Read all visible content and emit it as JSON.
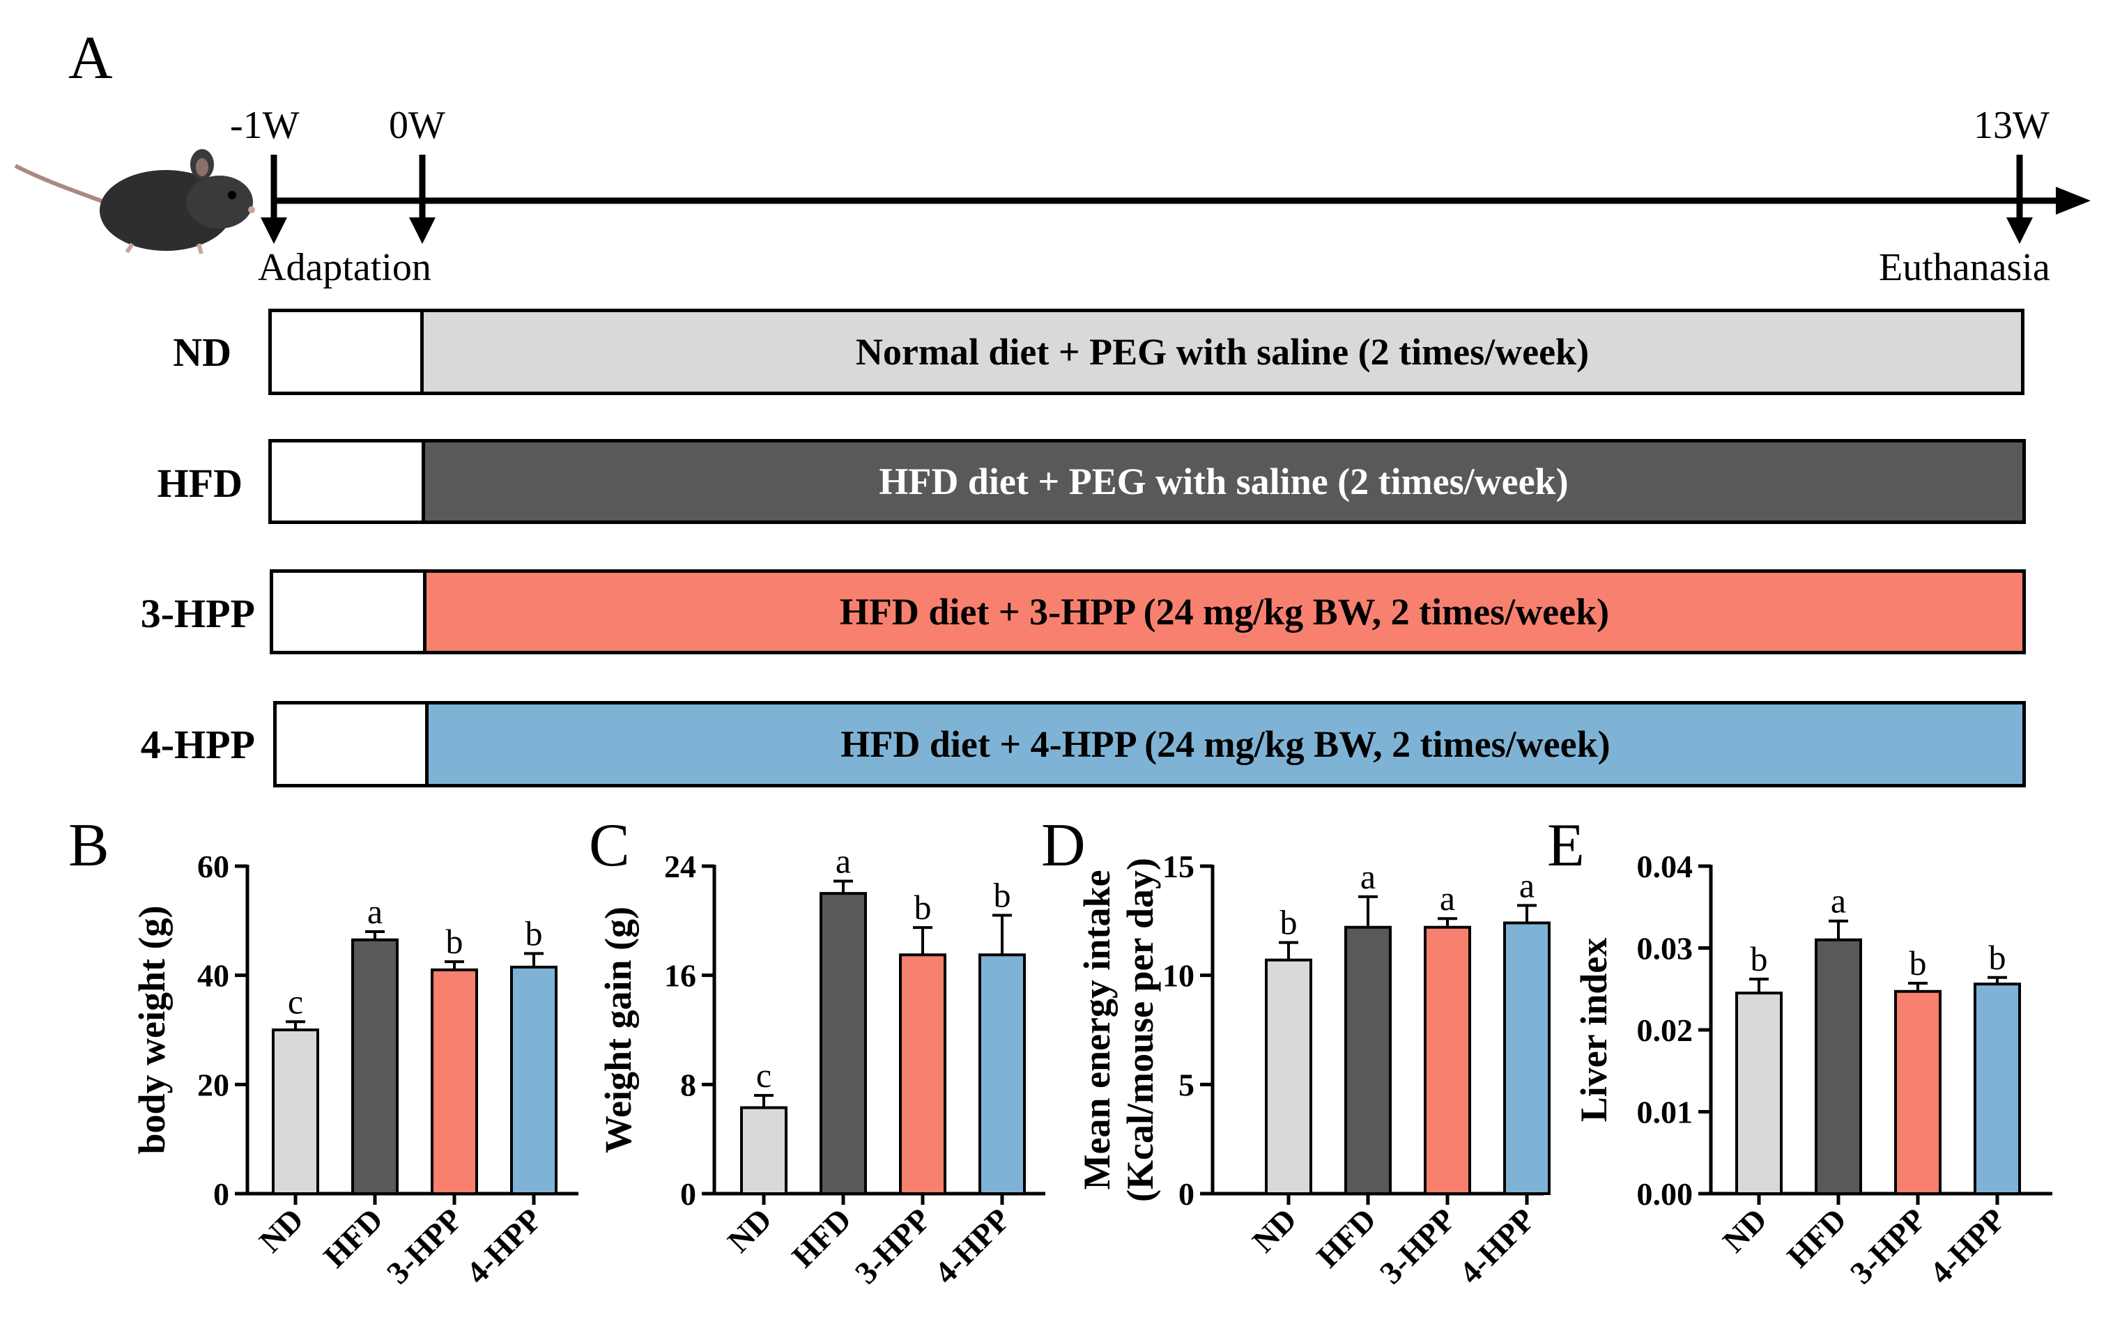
{
  "panels": {
    "A": "A",
    "B": "B",
    "C": "C",
    "D": "D",
    "E": "E"
  },
  "timeline": {
    "ticks": [
      "-1W",
      "0W",
      "13W"
    ],
    "events": {
      "adaptation": "Adaptation",
      "euthanasia": "Euthanasia"
    },
    "mouse_icon": "mouse-icon"
  },
  "groups": [
    {
      "label": "ND",
      "treatment": "Normal diet + PEG with saline (2 times/week)",
      "color": "#d9d9d9",
      "text_color": "#000000"
    },
    {
      "label": "HFD",
      "treatment": "HFD diet + PEG with saline (2 times/week)",
      "color": "#595959",
      "text_color": "#ffffff"
    },
    {
      "label": "3-HPP",
      "treatment": "HFD diet + 3-HPP (24 mg/kg BW, 2 times/week)",
      "color": "#f8806f",
      "text_color": "#000000"
    },
    {
      "label": "4-HPP",
      "treatment": "HFD diet + 4-HPP (24 mg/kg BW, 2 times/week)",
      "color": "#7fb3d5",
      "text_color": "#000000"
    }
  ],
  "chart_data": [
    {
      "type": "bar",
      "panel": "B",
      "categories": [
        "ND",
        "HFD",
        "3-HPP",
        "4-HPP"
      ],
      "values": [
        30,
        46.5,
        41,
        41.5
      ],
      "errors": [
        1.5,
        1.5,
        1.5,
        2.5
      ],
      "letters": [
        "c",
        "a",
        "b",
        "b"
      ],
      "ylabel": "body weight (g)",
      "ylim": [
        0,
        60
      ],
      "yticks": [
        "0",
        "20",
        "40",
        "60"
      ],
      "ytick_values": [
        0,
        20,
        40,
        60
      ]
    },
    {
      "type": "bar",
      "panel": "C",
      "categories": [
        "ND",
        "HFD",
        "3-HPP",
        "4-HPP"
      ],
      "values": [
        6.3,
        22,
        17.5,
        17.5
      ],
      "errors": [
        0.9,
        0.9,
        2.0,
        2.9
      ],
      "letters": [
        "c",
        "a",
        "b",
        "b"
      ],
      "ylabel": "Weight gain (g)",
      "ylim": [
        0,
        24
      ],
      "yticks": [
        "0",
        "8",
        "16",
        "24"
      ],
      "ytick_values": [
        0,
        8,
        16,
        24
      ]
    },
    {
      "type": "bar",
      "panel": "D",
      "categories": [
        "ND",
        "HFD",
        "3-HPP",
        "4-HPP"
      ],
      "values": [
        10.7,
        12.2,
        12.2,
        12.4
      ],
      "errors": [
        0.8,
        1.4,
        0.4,
        0.8
      ],
      "letters": [
        "b",
        "a",
        "a",
        "a"
      ],
      "ylabel": "Mean energy intake (Kcal/mouse per day)",
      "ylabel_lines": [
        "Mean energy intake",
        "(Kcal/mouse per day)"
      ],
      "ylim": [
        0,
        15
      ],
      "yticks": [
        "0",
        "5",
        "10",
        "15"
      ],
      "ytick_values": [
        0,
        5,
        10,
        15
      ]
    },
    {
      "type": "bar",
      "panel": "E",
      "categories": [
        "ND",
        "HFD",
        "3-HPP",
        "4-HPP"
      ],
      "values": [
        0.0245,
        0.031,
        0.0247,
        0.0256
      ],
      "errors": [
        0.0017,
        0.0023,
        0.001,
        0.0008
      ],
      "letters": [
        "b",
        "a",
        "b",
        "b"
      ],
      "ylabel": "Liver index",
      "ylim": [
        0,
        0.04
      ],
      "yticks": [
        "0.00",
        "0.01",
        "0.02",
        "0.03",
        "0.04"
      ],
      "ytick_values": [
        0,
        0.01,
        0.02,
        0.03,
        0.04
      ]
    }
  ]
}
